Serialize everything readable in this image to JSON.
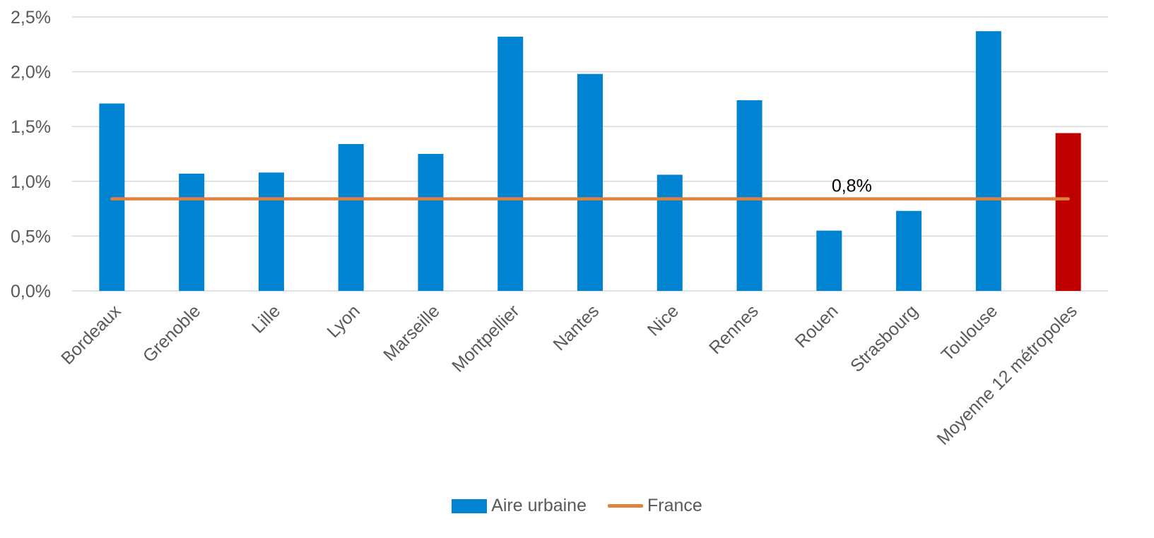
{
  "chart_data": {
    "type": "bar",
    "categories": [
      "Bordeaux",
      "Grenoble",
      "Lille",
      "Lyon",
      "Marseille",
      "Montpellier",
      "Nantes",
      "Nice",
      "Rennes",
      "Rouen",
      "Strasbourg",
      "Toulouse",
      "Moyenne 12 métropoles"
    ],
    "series": [
      {
        "name": "Aire urbaine",
        "type": "bar",
        "values": [
          1.71,
          1.07,
          1.08,
          1.34,
          1.25,
          2.32,
          1.98,
          1.06,
          1.74,
          0.55,
          0.73,
          2.37,
          1.44
        ],
        "color": "#0084D1",
        "highlight": {
          "index": 12,
          "color": "#C00000"
        }
      },
      {
        "name": "France",
        "type": "line",
        "value": 0.84,
        "color": "#E0823D",
        "label": "0,8%"
      }
    ],
    "y_ticks": [
      "0,0%",
      "0,5%",
      "1,0%",
      "1,5%",
      "2,0%",
      "2,5%"
    ],
    "ylim": [
      0,
      2.5
    ],
    "grid": true,
    "legend": "bottom",
    "title": "",
    "xlabel": "",
    "ylabel": ""
  }
}
